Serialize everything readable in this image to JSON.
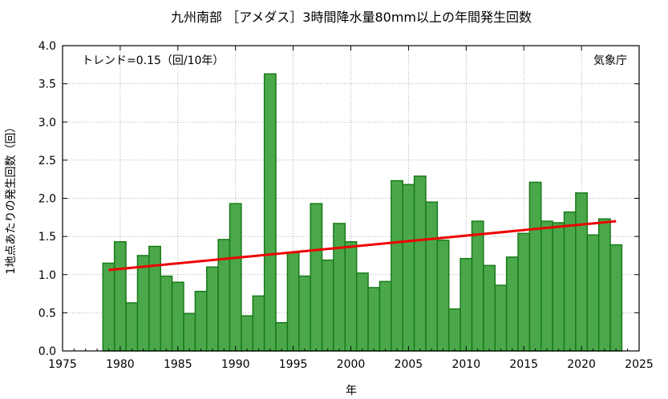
{
  "chart_data": {
    "type": "bar",
    "title": "九州南部 ［アメダス］3時間降水量80mm以上の年間発生回数",
    "xlabel": "年",
    "ylabel": "1地点あたりの発生回数（回）",
    "trend_label": "トレンド=0.15（回/10年）",
    "source_label": "気象庁",
    "xlim": [
      1975,
      2025
    ],
    "ylim": [
      0,
      4
    ],
    "x_ticks": [
      1975,
      1980,
      1985,
      1990,
      1995,
      2000,
      2005,
      2010,
      2015,
      2020,
      2025
    ],
    "y_ticks": [
      "0.0",
      "0.5",
      "1.0",
      "1.5",
      "2.0",
      "2.5",
      "3.0",
      "3.5",
      "4.0"
    ],
    "grid": true,
    "years": [
      1979,
      1980,
      1981,
      1982,
      1983,
      1984,
      1985,
      1986,
      1987,
      1988,
      1989,
      1990,
      1991,
      1992,
      1993,
      1994,
      1995,
      1996,
      1997,
      1998,
      1999,
      2000,
      2001,
      2002,
      2003,
      2004,
      2005,
      2006,
      2007,
      2008,
      2009,
      2010,
      2011,
      2012,
      2013,
      2014,
      2015,
      2016,
      2017,
      2018,
      2019,
      2020,
      2021,
      2022,
      2023
    ],
    "values": [
      1.15,
      1.43,
      0.63,
      1.25,
      1.37,
      0.98,
      0.9,
      0.49,
      0.78,
      1.1,
      1.46,
      1.93,
      0.46,
      0.72,
      3.63,
      0.37,
      1.29,
      0.98,
      1.93,
      1.19,
      1.67,
      1.43,
      1.02,
      0.83,
      0.91,
      2.23,
      2.18,
      2.29,
      1.95,
      1.45,
      0.55,
      1.21,
      1.7,
      1.12,
      0.86,
      1.23,
      1.54,
      2.21,
      1.7,
      1.68,
      1.82,
      2.07,
      1.52,
      1.73,
      1.39
    ],
    "trend": {
      "start": [
        1979,
        1.06
      ],
      "end": [
        2023,
        1.7
      ]
    },
    "colors": {
      "bar_fill": "#4aa84a",
      "bar_stroke": "#1a7a1a",
      "trend": "#ee0000",
      "grid": "#999999"
    }
  }
}
